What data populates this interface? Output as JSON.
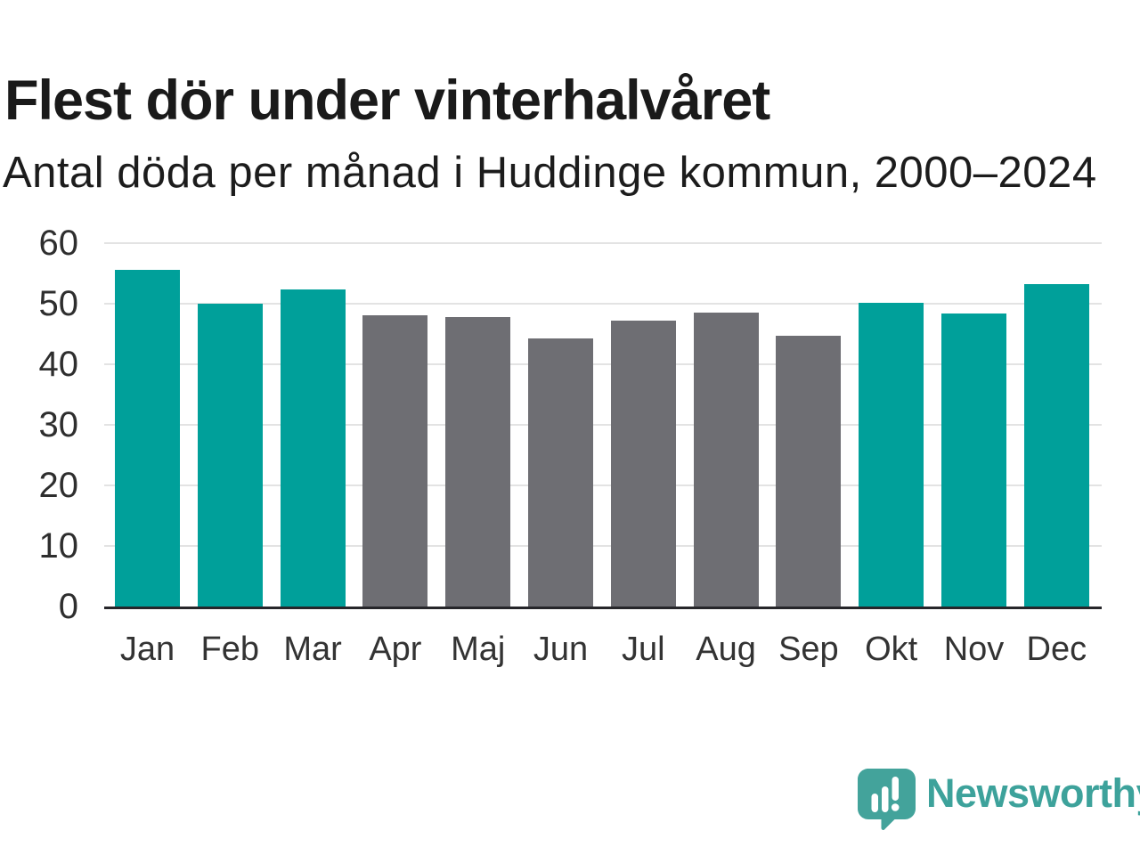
{
  "header": {
    "title": "Flest dör under vinterhalvåret",
    "subtitle": "Antal döda per månad i Huddinge kommun, 2000–2024"
  },
  "chart_data": {
    "type": "bar",
    "title": "Flest dör under vinterhalvåret",
    "subtitle": "Antal döda per månad i Huddinge kommun, 2000–2024",
    "categories": [
      "Jan",
      "Feb",
      "Mar",
      "Apr",
      "Maj",
      "Jun",
      "Jul",
      "Aug",
      "Sep",
      "Okt",
      "Nov",
      "Dec"
    ],
    "values": [
      55.6,
      50.0,
      52.3,
      48.1,
      47.8,
      44.3,
      47.2,
      48.5,
      44.7,
      50.2,
      48.4,
      53.2
    ],
    "bar_groups": [
      "winter",
      "winter",
      "winter",
      "summer",
      "summer",
      "summer",
      "summer",
      "summer",
      "summer",
      "winter",
      "winter",
      "winter"
    ],
    "palette": {
      "winter": "#00a09a",
      "summer": "#6e6e73"
    },
    "xlabel": "",
    "ylabel": "",
    "ylim": [
      0,
      60
    ],
    "yticks": [
      0,
      10,
      20,
      30,
      40,
      50,
      60
    ],
    "grid": "horizontal",
    "gridline_color": "#e3e3e3",
    "axis_line_color": "#26262a",
    "legend": "none"
  },
  "footer": {
    "brand": "Newsworthy",
    "brand_text_color": "#3da29b",
    "logo_mark_color": "#43a39b",
    "logo_icon": "newsworthy-speech-bubble-chart-icon"
  }
}
